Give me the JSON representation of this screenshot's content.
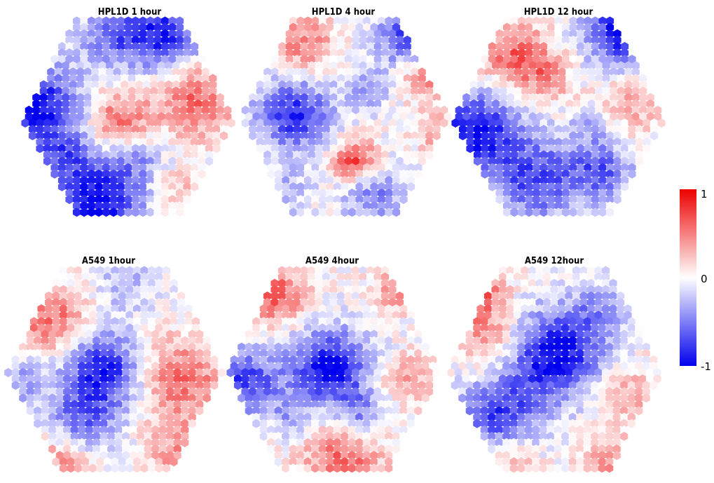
{
  "chart_data": {
    "type": "heatmap",
    "description_kind": "self-organizing-map-hexagonal",
    "color_scale": {
      "min": -1,
      "mid": 0,
      "max": 1,
      "low_color": "#0000ee",
      "mid_color": "#ffffff",
      "high_color": "#ee0000",
      "tick_labels": [
        "1",
        "0",
        "-1"
      ]
    },
    "panels": [
      {
        "title": "HPL1D 1 hour",
        "blobs": [
          {
            "u": 0.05,
            "v": 0.45,
            "r": 0.22,
            "value": -0.95
          },
          {
            "u": 0.35,
            "v": 0.93,
            "r": 0.2,
            "value": -0.95
          },
          {
            "u": 0.65,
            "v": 0.06,
            "r": 0.2,
            "value": -0.85
          },
          {
            "u": 0.4,
            "v": 0.08,
            "r": 0.12,
            "value": -0.4
          },
          {
            "u": 0.45,
            "v": 0.5,
            "r": 0.14,
            "value": 0.55
          },
          {
            "u": 0.82,
            "v": 0.4,
            "r": 0.18,
            "value": 0.6
          },
          {
            "u": 0.55,
            "v": 0.72,
            "r": 0.12,
            "value": -0.3
          },
          {
            "u": 0.2,
            "v": 0.7,
            "r": 0.12,
            "value": -0.35
          },
          {
            "u": 0.72,
            "v": 0.86,
            "r": 0.1,
            "value": 0.25
          }
        ]
      },
      {
        "title": "HPL1D 4 hour",
        "blobs": [
          {
            "u": 0.25,
            "v": 0.48,
            "r": 0.17,
            "value": -0.8
          },
          {
            "u": 0.8,
            "v": 0.08,
            "r": 0.14,
            "value": -0.7
          },
          {
            "u": 0.3,
            "v": 0.12,
            "r": 0.15,
            "value": 0.45
          },
          {
            "u": 0.55,
            "v": 0.72,
            "r": 0.1,
            "value": 0.75
          },
          {
            "u": 0.88,
            "v": 0.3,
            "r": 0.1,
            "value": 0.5
          },
          {
            "u": 0.6,
            "v": 0.35,
            "r": 0.1,
            "value": -0.4
          },
          {
            "u": 0.65,
            "v": 0.9,
            "r": 0.15,
            "value": -0.45
          },
          {
            "u": 0.2,
            "v": 0.88,
            "r": 0.12,
            "value": -0.3
          },
          {
            "u": 0.95,
            "v": 0.58,
            "r": 0.1,
            "value": 0.35
          }
        ]
      },
      {
        "title": "HPL1D 12 hour",
        "blobs": [
          {
            "u": 0.82,
            "v": 0.05,
            "r": 0.18,
            "value": -0.95
          },
          {
            "u": 0.1,
            "v": 0.58,
            "r": 0.2,
            "value": -0.9
          },
          {
            "u": 0.4,
            "v": 0.82,
            "r": 0.2,
            "value": -0.65
          },
          {
            "u": 0.3,
            "v": 0.18,
            "r": 0.15,
            "value": 0.6
          },
          {
            "u": 0.45,
            "v": 0.3,
            "r": 0.12,
            "value": 0.35
          },
          {
            "u": 0.85,
            "v": 0.42,
            "r": 0.14,
            "value": 0.35
          },
          {
            "u": 0.7,
            "v": 0.78,
            "r": 0.14,
            "value": -0.55
          },
          {
            "u": 0.65,
            "v": 0.55,
            "r": 0.1,
            "value": -0.25
          }
        ]
      },
      {
        "title": "A549 1hour",
        "blobs": [
          {
            "u": 0.45,
            "v": 0.5,
            "r": 0.17,
            "value": -0.9
          },
          {
            "u": 0.2,
            "v": 0.25,
            "r": 0.16,
            "value": 0.55
          },
          {
            "u": 0.8,
            "v": 0.55,
            "r": 0.2,
            "value": 0.55
          },
          {
            "u": 0.35,
            "v": 0.75,
            "r": 0.15,
            "value": -0.55
          },
          {
            "u": 0.05,
            "v": 0.55,
            "r": 0.12,
            "value": -0.35
          },
          {
            "u": 0.55,
            "v": 0.08,
            "r": 0.12,
            "value": -0.3
          },
          {
            "u": 0.25,
            "v": 0.95,
            "r": 0.14,
            "value": 0.4
          },
          {
            "u": 0.8,
            "v": 0.92,
            "r": 0.14,
            "value": 0.35
          }
        ]
      },
      {
        "title": "A549 4hour",
        "blobs": [
          {
            "u": 0.48,
            "v": 0.48,
            "r": 0.17,
            "value": -0.95
          },
          {
            "u": 0.08,
            "v": 0.55,
            "r": 0.15,
            "value": -0.75
          },
          {
            "u": 0.22,
            "v": 0.12,
            "r": 0.14,
            "value": 0.6
          },
          {
            "u": 0.78,
            "v": 0.1,
            "r": 0.1,
            "value": 0.4
          },
          {
            "u": 0.55,
            "v": 0.95,
            "r": 0.18,
            "value": 0.55
          },
          {
            "u": 0.85,
            "v": 0.55,
            "r": 0.12,
            "value": 0.35
          },
          {
            "u": 0.62,
            "v": 0.72,
            "r": 0.12,
            "value": -0.45
          },
          {
            "u": 0.3,
            "v": 0.72,
            "r": 0.1,
            "value": -0.3
          }
        ]
      },
      {
        "title": "A549 12hour",
        "blobs": [
          {
            "u": 0.5,
            "v": 0.42,
            "r": 0.2,
            "value": -0.98
          },
          {
            "u": 0.1,
            "v": 0.1,
            "r": 0.14,
            "value": 0.8
          },
          {
            "u": 0.2,
            "v": 0.35,
            "r": 0.15,
            "value": 0.4
          },
          {
            "u": 0.25,
            "v": 0.72,
            "r": 0.18,
            "value": -0.7
          },
          {
            "u": 0.85,
            "v": 0.62,
            "r": 0.14,
            "value": 0.35
          },
          {
            "u": 0.75,
            "v": 0.95,
            "r": 0.12,
            "value": 0.4
          },
          {
            "u": 0.3,
            "v": 0.95,
            "r": 0.12,
            "value": 0.35
          },
          {
            "u": 0.72,
            "v": 0.2,
            "r": 0.14,
            "value": -0.35
          }
        ]
      }
    ]
  }
}
